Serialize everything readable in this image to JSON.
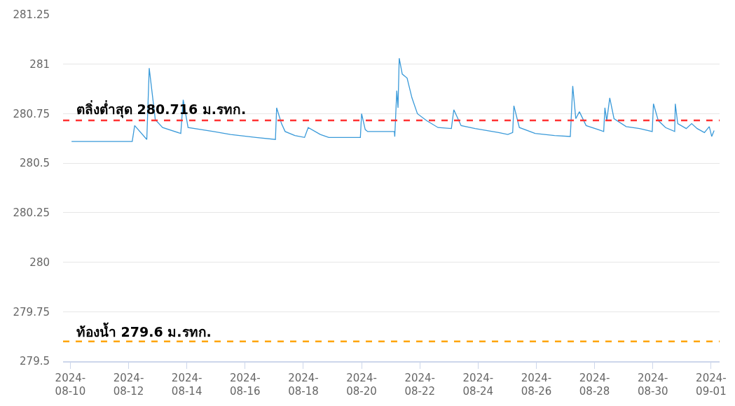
{
  "chart_data": {
    "type": "line",
    "x": [
      "2024-08-10T01:00",
      "2024-08-12T03:00",
      "2024-08-12T05:00",
      "2024-08-12T15:00",
      "2024-08-12T17:00",
      "2024-08-12T22:00",
      "2024-08-13T04:00",
      "2024-08-13T19:00",
      "2024-08-13T21:00",
      "2024-08-14T01:00",
      "2024-08-14T22:00",
      "2024-08-15T12:00",
      "2024-08-16T09:00",
      "2024-08-17T01:00",
      "2024-08-17T02:00",
      "2024-08-17T06:00",
      "2024-08-17T09:00",
      "2024-08-17T17:00",
      "2024-08-18T01:00",
      "2024-08-18T04:00",
      "2024-08-18T14:00",
      "2024-08-18T21:00",
      "2024-08-19T23:00",
      "2024-08-20T00:00",
      "2024-08-20T03:00",
      "2024-08-20T05:00",
      "2024-08-21T03:00",
      "2024-08-21T03:20",
      "2024-08-21T05:00",
      "2024-08-21T06:00",
      "2024-08-21T07:00",
      "2024-08-21T09:30",
      "2024-08-21T13:30",
      "2024-08-21T17:30",
      "2024-08-21T22:00",
      "2024-08-22T05:30",
      "2024-08-22T15:00",
      "2024-08-23T02:00",
      "2024-08-23T04:00",
      "2024-08-23T10:00",
      "2024-08-23T21:30",
      "2024-08-24T17:00",
      "2024-08-25T00:30",
      "2024-08-25T04:30",
      "2024-08-25T05:30",
      "2024-08-25T10:00",
      "2024-08-25T23:00",
      "2024-08-26T15:00",
      "2024-08-27T04:00",
      "2024-08-27T06:00",
      "2024-08-27T08:30",
      "2024-08-27T11:30",
      "2024-08-27T17:00",
      "2024-08-28T03:00",
      "2024-08-28T07:30",
      "2024-08-28T08:30",
      "2024-08-28T10:00",
      "2024-08-28T12:30",
      "2024-08-28T16:00",
      "2024-08-29T02:00",
      "2024-08-29T13:00",
      "2024-08-29T23:30",
      "2024-08-30T00:30",
      "2024-08-30T04:30",
      "2024-08-30T10:30",
      "2024-08-30T18:00",
      "2024-08-30T18:30",
      "2024-08-30T20:30",
      "2024-08-31T03:30",
      "2024-08-31T08:00",
      "2024-08-31T12:30",
      "2024-08-31T18:30",
      "2024-08-31T22:30",
      "2024-09-01T00:30",
      "2024-09-01T02:30"
    ],
    "series": [
      {
        "color": "#3a9ad9",
        "values": [
          280.61,
          280.61,
          280.69,
          280.62,
          280.98,
          280.72,
          280.68,
          280.65,
          280.82,
          280.68,
          280.66,
          280.645,
          280.63,
          280.62,
          280.78,
          280.7,
          280.66,
          280.64,
          280.63,
          280.68,
          280.645,
          280.63,
          280.63,
          280.75,
          280.67,
          280.66,
          280.66,
          280.634,
          280.866,
          280.78,
          281.03,
          280.95,
          280.93,
          280.83,
          280.75,
          280.715,
          280.68,
          280.675,
          280.77,
          280.69,
          280.675,
          280.655,
          280.645,
          280.655,
          280.79,
          280.68,
          280.65,
          280.64,
          280.635,
          280.89,
          280.725,
          280.76,
          280.69,
          280.67,
          280.66,
          280.78,
          280.715,
          280.83,
          280.725,
          280.685,
          280.675,
          280.66,
          280.8,
          280.715,
          280.68,
          280.66,
          280.8,
          280.7,
          280.675,
          280.7,
          280.675,
          280.655,
          280.685,
          280.635,
          280.665
        ]
      }
    ],
    "xlim": [
      "2024-08-09T18:00",
      "2024-09-01T07:00"
    ],
    "xticks": [
      {
        "value": "2024-08-10",
        "label": "2024-\n08-10"
      },
      {
        "value": "2024-08-12",
        "label": "2024-\n08-12"
      },
      {
        "value": "2024-08-14",
        "label": "2024-\n08-14"
      },
      {
        "value": "2024-08-16",
        "label": "2024-\n08-16"
      },
      {
        "value": "2024-08-18",
        "label": "2024-\n08-18"
      },
      {
        "value": "2024-08-20",
        "label": "2024-\n08-20"
      },
      {
        "value": "2024-08-22",
        "label": "2024-\n08-22"
      },
      {
        "value": "2024-08-24",
        "label": "2024-\n08-24"
      },
      {
        "value": "2024-08-26",
        "label": "2024-\n08-26"
      },
      {
        "value": "2024-08-28",
        "label": "2024-\n08-28"
      },
      {
        "value": "2024-08-30",
        "label": "2024-\n08-30"
      },
      {
        "value": "2024-09-01",
        "label": "2024-\n09-01"
      }
    ],
    "ylim": [
      279.5,
      281.25
    ],
    "yticks": [
      279.5,
      279.75,
      280,
      280.25,
      280.5,
      280.75,
      281,
      281.25
    ],
    "grid": "y",
    "marker": "none",
    "line_style": "solid",
    "ref_lines": [
      {
        "axis": "y",
        "value": 280.716,
        "label": "ตลิ่งต่ำสุด 280.716 ม.รทก.",
        "color": "#ff3333",
        "line_style": "dashed"
      },
      {
        "axis": "y",
        "value": 279.6,
        "label": "ท้องน้ำ 279.6 ม.รทก.",
        "color": "#ffa500",
        "line_style": "dashed"
      }
    ]
  }
}
